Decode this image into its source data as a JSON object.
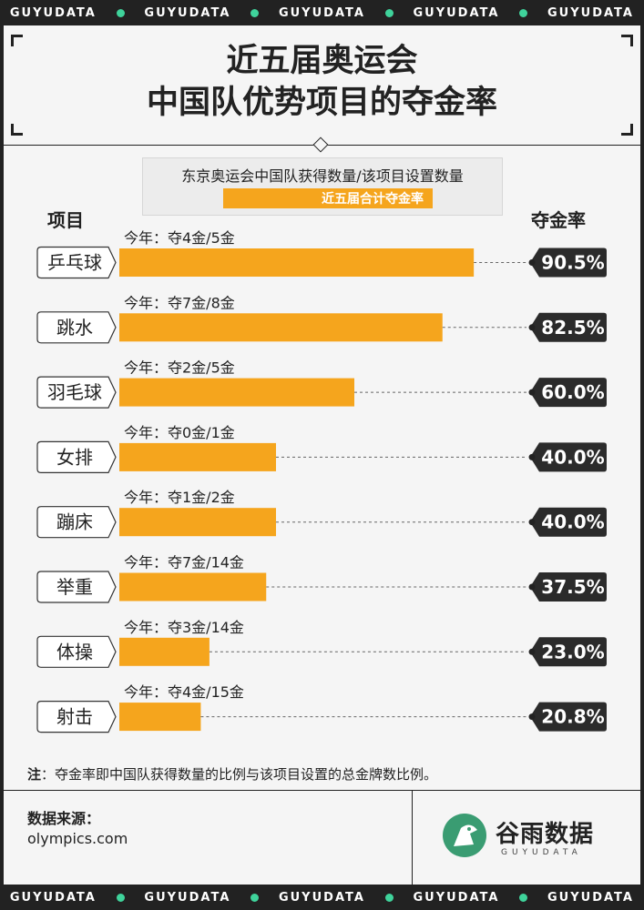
{
  "ticker": {
    "text": "GUYUDATA",
    "repeat": 5
  },
  "title": {
    "line1": "近五届奥运会",
    "line2": "中国队优势项目的夺金率"
  },
  "legend": {
    "line1": "东京奥运会中国队获得数量/该项目设置数量",
    "line2": "近五届合计夺金率"
  },
  "headers": {
    "left": "项目",
    "right": "夺金率"
  },
  "colors": {
    "bar": "#f5a51d",
    "badge": "#2b2b2b",
    "accent": "#3fd39b"
  },
  "chart_data": {
    "type": "bar",
    "orientation": "horizontal",
    "categories": [
      "乒乓球",
      "跳水",
      "羽毛球",
      "女排",
      "蹦床",
      "举重",
      "体操",
      "射击"
    ],
    "values": [
      90.5,
      82.5,
      60.0,
      40.0,
      40.0,
      37.5,
      23.0,
      20.8
    ],
    "value_labels": [
      "90.5%",
      "82.5%",
      "60.0%",
      "40.0%",
      "40.0%",
      "37.5%",
      "23.0%",
      "20.8%"
    ],
    "annotations": [
      "今年：夺4金/5金",
      "今年：夺7金/8金",
      "今年：夺2金/5金",
      "今年：夺0金/1金",
      "今年：夺1金/2金",
      "今年：夺7金/14金",
      "今年：夺3金/14金",
      "今年：夺4金/15金"
    ],
    "unit": "%"
  },
  "note": {
    "prefix": "注",
    "text": "：夺金率即中国队获得数量的比例与该项目设置的总金牌数比例。"
  },
  "source": {
    "label": "数据来源：",
    "value": "olympics.com"
  },
  "logo": {
    "name": "谷雨数据",
    "sub": "GUYUDATA"
  }
}
